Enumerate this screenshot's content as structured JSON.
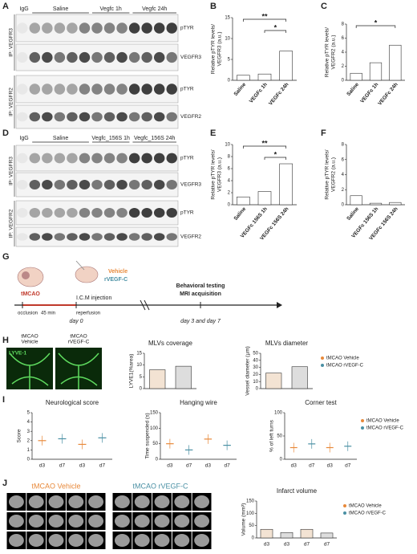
{
  "panels": [
    "A",
    "B",
    "C",
    "D",
    "E",
    "F",
    "G",
    "H",
    "I",
    "J"
  ],
  "blot_a": {
    "igg": "IgG",
    "lanes": [
      "Saline",
      "Vegfc 1h",
      "Vegfc 24h"
    ],
    "ip": [
      "IP: VEGFR3",
      "IP: VEGFR2"
    ],
    "bands": [
      "pTYR",
      "VEGFR3",
      "pTYR",
      "VEGFR2"
    ]
  },
  "blot_d": {
    "igg": "IgG",
    "lanes": [
      "Saline",
      "Vegfc_156S 1h",
      "Vegfc_156S 24h"
    ],
    "ip": [
      "IP: VEGFR3",
      "IP: VEGFR2"
    ],
    "bands": [
      "pTYR",
      "VEGFR3",
      "pTYR",
      "VEGFR2"
    ]
  },
  "timeline": {
    "surgery": "tMCAO",
    "occlusion": "occlusion",
    "duration": "45 min",
    "reperfusion": "reperfusion",
    "injection": "I.C.M  injection",
    "vehicle": "Vehicle",
    "treatment": "rVEGF-C",
    "day0": "day 0",
    "behavior": "Behavioral testing",
    "mri": "MRI acquisition",
    "days": "day 3 and day 7"
  },
  "images_h": {
    "labels": [
      [
        "tMCAO",
        "Vehicle"
      ],
      [
        "tMCAO",
        "rVEGF-C"
      ]
    ],
    "stain": "LYVE-1"
  },
  "mri_j": {
    "labels": [
      "tMCAO Vehicle",
      "tMCAO rVEGF-C"
    ]
  },
  "chart_data": [
    {
      "type": "bar",
      "ylabel": [
        "Relative pTYR levels/",
        "VEGFR3 (a.u.)"
      ],
      "categories": [
        "Saline",
        "VEGFc 1h",
        "VEGFc 24h"
      ],
      "values": [
        1.2,
        1.5,
        7
      ],
      "colors": [
        "#ffffff",
        "#ffffff",
        "#ffffff"
      ],
      "ylim": [
        0,
        15
      ],
      "yticks": [
        0,
        5,
        10,
        15
      ],
      "annotations": [
        "**",
        "*"
      ]
    },
    {
      "type": "bar",
      "ylabel": [
        "Relative pTYR levels/",
        "VEGFR2 (a.u.)"
      ],
      "categories": [
        "Saline",
        "VEGFc 1h",
        "VEGFc 24h"
      ],
      "values": [
        1,
        2.5,
        5
      ],
      "colors": [
        "#ffffff",
        "#ffffff",
        "#ffffff"
      ],
      "ylim": [
        0,
        8
      ],
      "yticks": [
        0,
        2,
        4,
        6,
        8
      ],
      "annotations": [
        "*"
      ]
    },
    {
      "type": "bar",
      "ylabel": [
        "Relative pTYR levels/",
        "VEGFR3 (a.u.)"
      ],
      "categories": [
        "Saline",
        "VEGFc 156S 1h",
        "VEGFc 156S 24h"
      ],
      "values": [
        1.3,
        2.2,
        6.8
      ],
      "colors": [
        "#ffffff",
        "#ffffff",
        "#ffffff"
      ],
      "ylim": [
        0,
        10
      ],
      "yticks": [
        0,
        2,
        4,
        6,
        8,
        10
      ],
      "annotations": [
        "**",
        "*"
      ]
    },
    {
      "type": "bar",
      "ylabel": [
        "Relative pTYR levels/",
        "VEGFR2 (a.u.)"
      ],
      "categories": [
        "Saline",
        "VEGFc 156S 1h",
        "VEGFc 156S 24h"
      ],
      "values": [
        1.2,
        0.2,
        0.3
      ],
      "colors": [
        "#ffffff",
        "#ffffff",
        "#ffffff"
      ],
      "ylim": [
        0,
        8
      ],
      "yticks": [
        0,
        2,
        4,
        6,
        8
      ]
    },
    {
      "type": "bar",
      "title": "MLVs coverage",
      "ylabel": [
        "LYVE1(%area)"
      ],
      "categories": [
        null,
        null
      ],
      "values": [
        8,
        9.5
      ],
      "colors": [
        "#f3e3d3",
        "#dddddd"
      ],
      "ylim": [
        0,
        15
      ],
      "yticks": [
        0,
        5,
        10,
        15
      ]
    },
    {
      "type": "bar",
      "title": "MLVs diameter",
      "ylabel": [
        "Vessel diameter (µm)"
      ],
      "categories": [
        null,
        null
      ],
      "values": [
        22,
        31
      ],
      "colors": [
        "#f3e3d3",
        "#dddddd"
      ],
      "ylim": [
        0,
        50
      ],
      "yticks": [
        0,
        10,
        20,
        30,
        40,
        50
      ],
      "legend": [
        {
          "name": "tMCAO Vehicle",
          "color": "#e8893a"
        },
        {
          "name": "tMCAO rVEGF-C",
          "color": "#4a90a4"
        }
      ]
    },
    {
      "type": "dot",
      "title": "Neurological score",
      "ylabel": [
        "Score"
      ],
      "categories": [
        "d3",
        "d7",
        "d3",
        "d7"
      ],
      "values": [
        2,
        2.2,
        1.6,
        2.3
      ],
      "colors": [
        "#e8893a",
        "#4a90a4",
        "#e8893a",
        "#4a90a4"
      ],
      "ylim": [
        0,
        5
      ],
      "yticks": [
        0,
        1,
        2,
        3,
        4,
        5
      ]
    },
    {
      "type": "dot",
      "title": "Hanging wire",
      "ylabel": [
        "Time suspended (s)"
      ],
      "categories": [
        "d3",
        "d7",
        "d3",
        "d7"
      ],
      "values": [
        50,
        30,
        65,
        45
      ],
      "colors": [
        "#e8893a",
        "#4a90a4",
        "#e8893a",
        "#4a90a4"
      ],
      "ylim": [
        0,
        150
      ],
      "yticks": [
        0,
        50,
        100,
        150
      ]
    },
    {
      "type": "dot",
      "title": "Corner test",
      "ylabel": [
        "% of left turns"
      ],
      "categories": [
        "d3",
        "d7",
        "d3",
        "d7"
      ],
      "values": [
        25,
        33,
        25,
        28
      ],
      "colors": [
        "#e8893a",
        "#4a90a4",
        "#e8893a",
        "#4a90a4"
      ],
      "ylim": [
        0,
        100
      ],
      "yticks": [
        0,
        50,
        100
      ],
      "legend": [
        {
          "name": "tMCAO Vehicle",
          "color": "#e8893a"
        },
        {
          "name": "tMCAO rVEGF-C",
          "color": "#4a90a4"
        }
      ]
    },
    {
      "type": "bar",
      "title": "Infarct volume",
      "ylabel": [
        "Volume (mm³)"
      ],
      "categories": [
        "d3",
        "d3",
        "d7",
        "d7"
      ],
      "values": [
        35,
        22,
        35,
        20
      ],
      "colors": [
        "#f3e3d3",
        "#dddddd",
        "#f3e3d3",
        "#dddddd"
      ],
      "ylim": [
        0,
        150
      ],
      "yticks": [
        0,
        50,
        100,
        150
      ],
      "legend": [
        {
          "name": "tMCAO Vehicle",
          "color": "#e8893a"
        },
        {
          "name": "tMCAO rVEGF-C",
          "color": "#4a90a4"
        }
      ]
    }
  ]
}
